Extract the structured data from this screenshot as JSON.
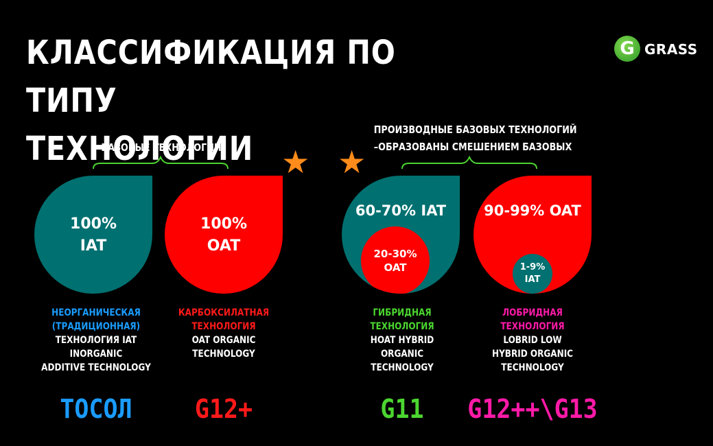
{
  "title": {
    "line1": "КЛАССИФИКАЦИЯ ПО ТИПУ",
    "line2": "ТЕХНОЛОГИИ"
  },
  "logo": {
    "text": "GRASS",
    "icon": "grass-g-logo"
  },
  "groups": {
    "base": {
      "label": "БАЗОВЫЕ ТЕХНОЛОГИИ"
    },
    "derived": {
      "label_line1": "ПРОИЗВОДНЫЕ БАЗОВЫХ ТЕХНОЛОГИЙ",
      "label_line2": "–ОБРАЗОВАНЫ СМЕШЕНИЕМ БАЗОВЫХ"
    }
  },
  "colors": {
    "teal": "#007070",
    "red": "#ff0000",
    "blue": "#1a9cff",
    "green": "#4cd630",
    "pink": "#ff1aa8",
    "star": "#ff8c1a",
    "brace": "#4cd630"
  },
  "technologies": [
    {
      "drop_line1": "100%",
      "drop_line2": "IAT",
      "desc_colored": [
        "НЕОРГАНИЧЕСКАЯ",
        "(ТРАДИЦИОННАЯ)"
      ],
      "desc_white": [
        "ТЕХНОЛОГИЯ IAT",
        "INORGANIC",
        "ADDITIVE TECHNOLOGY"
      ],
      "code": "ТОСОЛ"
    },
    {
      "drop_line1": "100%",
      "drop_line2": "OAT",
      "desc_colored": [
        "КАРБОКСИЛАТНАЯ",
        "ТЕХНОЛОГИЯ"
      ],
      "desc_white": [
        "OAT ORGANIC",
        "TECHNOLOGY"
      ],
      "code": "G12+"
    },
    {
      "drop_line1": "60-70% IAT",
      "inner_line1": "20-30%",
      "inner_line2": "OAT",
      "desc_colored": [
        "ГИБРИДНАЯ",
        "ТЕХНОЛОГИЯ"
      ],
      "desc_white": [
        "HOAT HYBRID",
        "ORGANIC",
        "TECHNOLOGY"
      ],
      "code": "G11"
    },
    {
      "drop_line1": "90-99% OAT",
      "inner_line1": "1-9%",
      "inner_line2": "IAT",
      "desc_colored": [
        "ЛОБРИДНАЯ",
        "ТЕХНОЛОГИЯ"
      ],
      "desc_white": [
        "LOBRID LOW",
        "HYBRID ORGANIC",
        "TECHNOLOGY"
      ],
      "code": "G12++\\G13"
    }
  ]
}
